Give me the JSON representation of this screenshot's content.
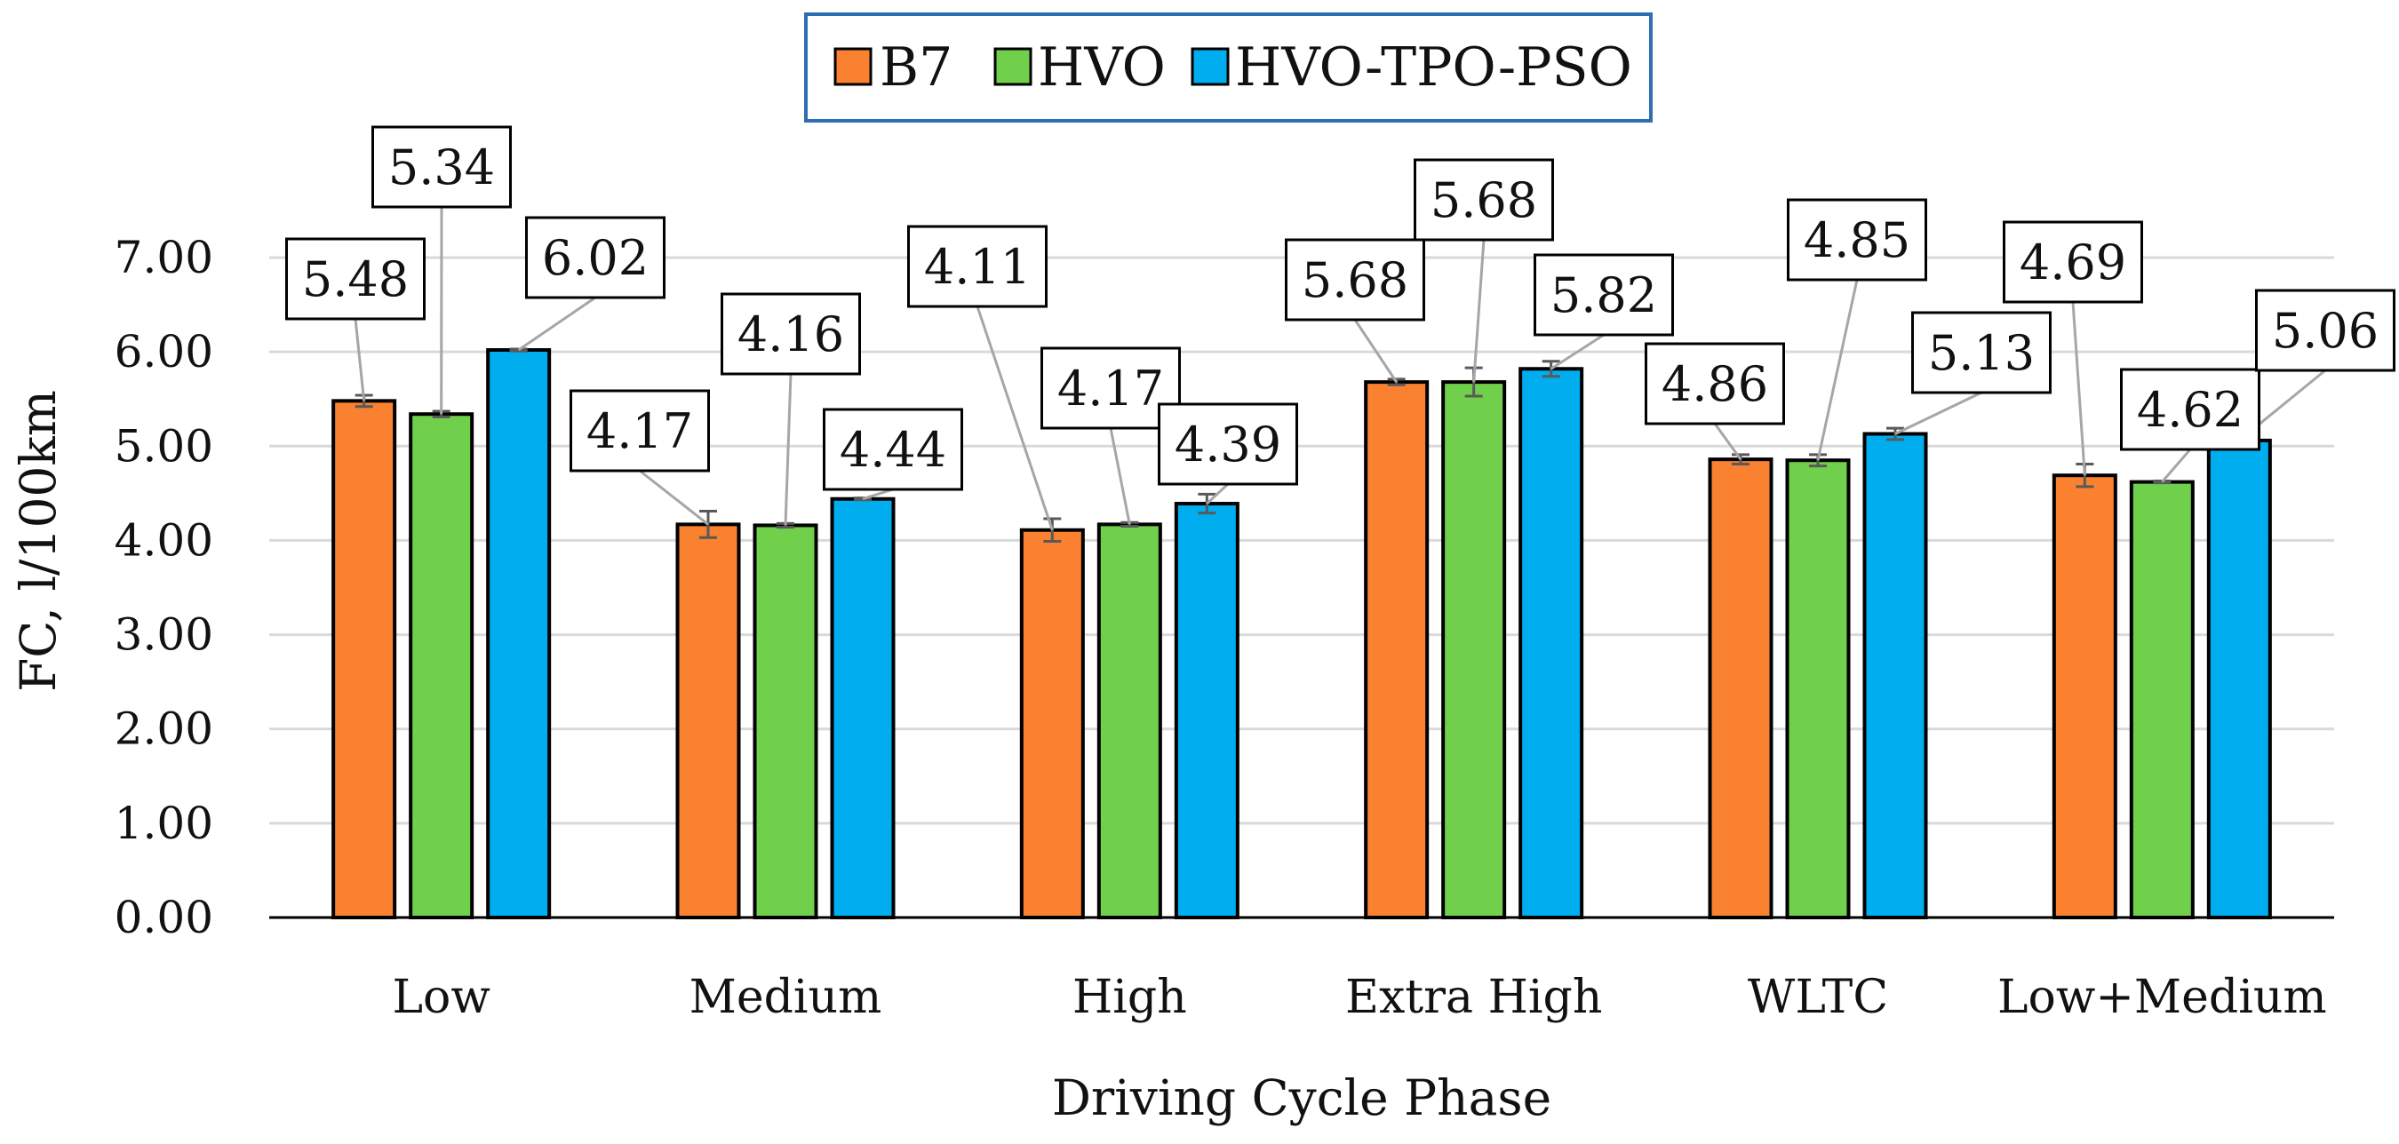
{
  "chart_data": {
    "type": "bar",
    "title": "",
    "xlabel": "Driving Cycle Phase",
    "ylabel": "FC, l/100km",
    "ylim": [
      0,
      7
    ],
    "yticks": [
      "0.00",
      "1.00",
      "2.00",
      "3.00",
      "4.00",
      "5.00",
      "6.00",
      "7.00"
    ],
    "grid": true,
    "legend_position": "top-center",
    "categories": [
      "Low",
      "Medium",
      "High",
      "Extra High",
      "WLTC",
      "Low+Medium"
    ],
    "series": [
      {
        "name": "B7",
        "color": "#F98130",
        "values": [
          5.48,
          4.17,
          4.11,
          5.68,
          4.86,
          4.69
        ],
        "labels": [
          "5.48",
          "4.17",
          "4.11",
          "5.68",
          "4.86",
          "4.69"
        ],
        "errors": [
          0.06,
          0.14,
          0.12,
          0.03,
          0.05,
          0.12
        ]
      },
      {
        "name": "HVO",
        "color": "#70D04C",
        "values": [
          5.34,
          4.16,
          4.17,
          5.68,
          4.85,
          4.62
        ],
        "labels": [
          "5.34",
          "4.16",
          "4.17",
          "5.68",
          "4.85",
          "4.62"
        ],
        "errors": [
          0.03,
          0.02,
          0.02,
          0.15,
          0.06,
          0.01
        ]
      },
      {
        "name": "HVO-TPO-PSO",
        "color": "#00ADEF",
        "values": [
          6.02,
          4.44,
          4.39,
          5.82,
          5.13,
          5.06
        ],
        "labels": [
          "6.02",
          "4.44",
          "4.39",
          "5.82",
          "5.13",
          "5.06"
        ],
        "errors": [
          0.01,
          0.01,
          0.1,
          0.08,
          0.06,
          0.01
        ]
      }
    ]
  }
}
